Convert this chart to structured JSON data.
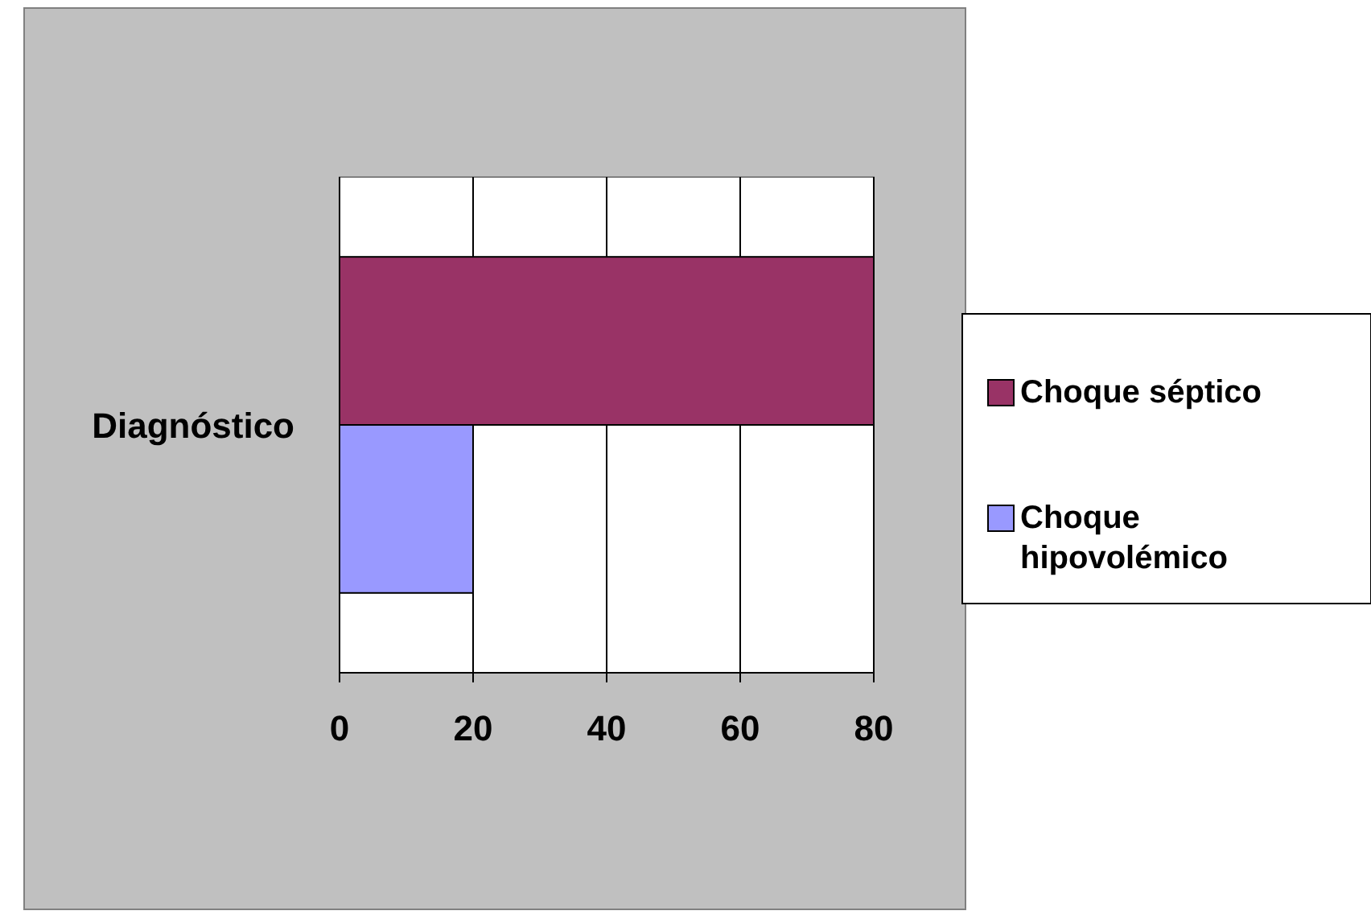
{
  "chart_data": {
    "type": "bar",
    "orientation": "horizontal",
    "categories": [
      "Diagnóstico"
    ],
    "series": [
      {
        "name": "Choque séptico",
        "color": "#993366",
        "values": [
          80
        ]
      },
      {
        "name": "Choque hipovolémico",
        "color": "#9999ff",
        "values": [
          20
        ]
      }
    ],
    "xlim": [
      0,
      80
    ],
    "xticks": [
      0,
      20,
      40,
      60,
      80
    ],
    "grid": "x",
    "legend": "right"
  }
}
